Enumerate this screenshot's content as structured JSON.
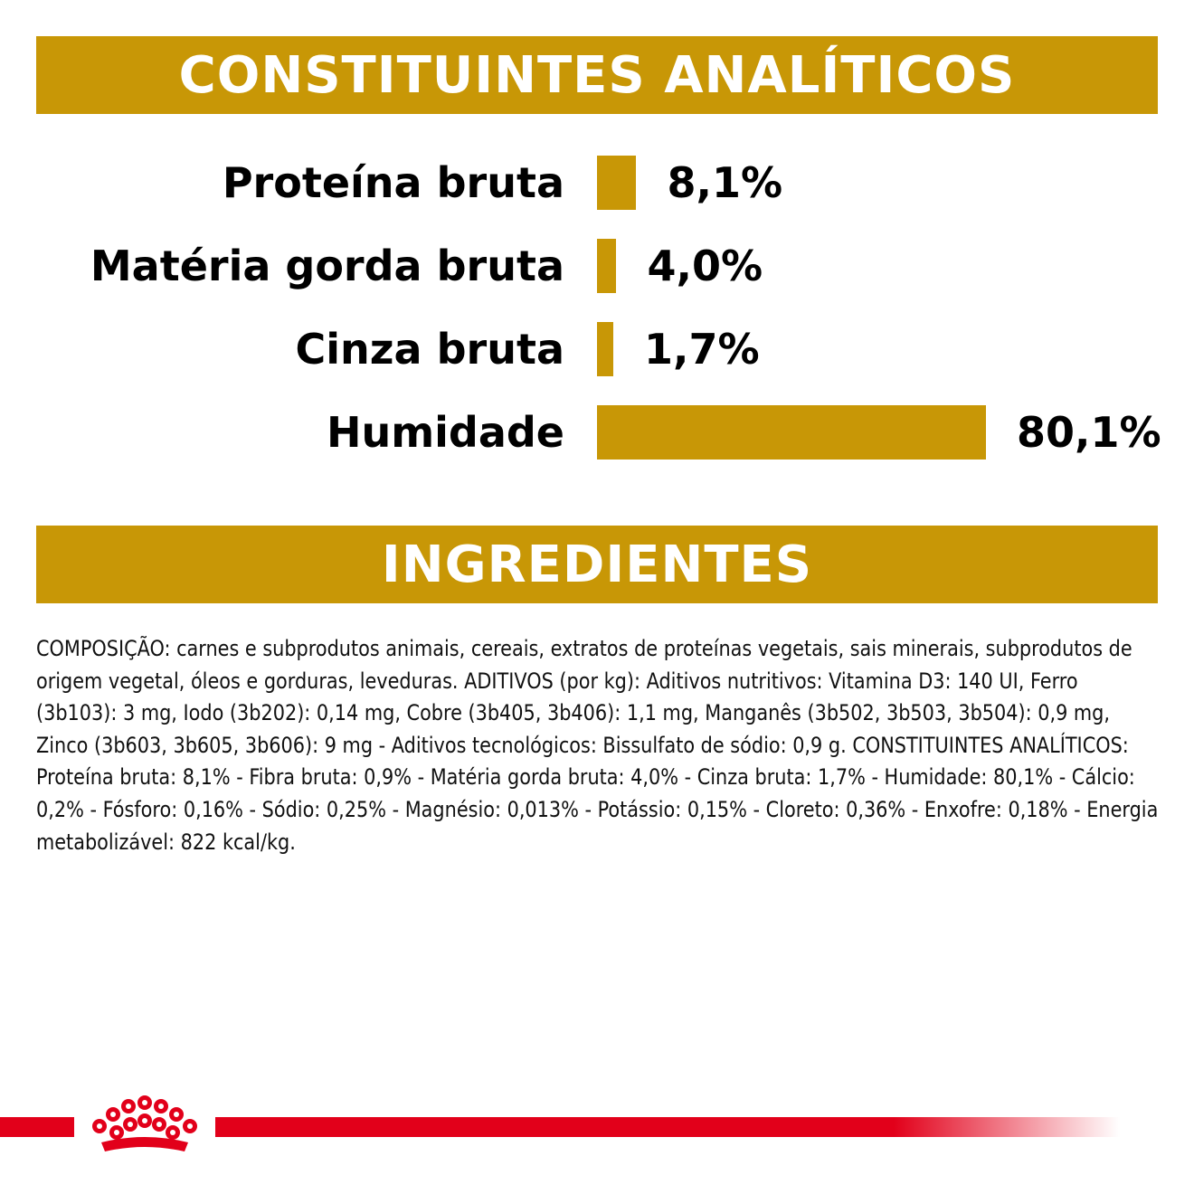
{
  "colors": {
    "gold": "#c89706",
    "red": "#e2001a",
    "text": "#000000"
  },
  "sections": {
    "analytic_title": "CONSTITUINTES ANALÍTICOS",
    "ingredients_title": "INGREDIENTES"
  },
  "chart_data": {
    "type": "bar",
    "orientation": "horizontal",
    "categories": [
      "Proteína bruta",
      "Matéria gorda bruta",
      "Cinza bruta",
      "Humidade"
    ],
    "values": [
      8.1,
      4.0,
      1.7,
      80.1
    ],
    "value_labels": [
      "8,1%",
      "4,0%",
      "1,7%",
      "80,1%"
    ]
  },
  "ingredients": {
    "text": "COMPOSIÇÃO: carnes e subprodutos animais, cereais, extratos de proteínas vegetais, sais minerais, subprodutos de origem vegetal, óleos e gorduras, leveduras. ADITIVOS (por kg): Aditivos nutritivos: Vitamina D3: 140 UI, Ferro (3b103): 3 mg, Iodo (3b202): 0,14 mg, Cobre (3b405, 3b406): 1,1 mg, Manganês (3b502, 3b503, 3b504): 0,9 mg, Zinco (3b603, 3b605, 3b606): 9 mg - Aditivos tecnológicos: Bissulfato de sódio: 0,9 g. CONSTITUINTES ANALÍTICOS: Proteína bruta: 8,1% - Fibra bruta: 0,9% - Matéria gorda bruta: 4,0% - Cinza bruta: 1,7% - Humidade: 80,1% - Cálcio: 0,2% - Fósforo: 0,16% - Sódio: 0,25% - Magnésio: 0,013% - Potássio: 0,15% - Cloreto: 0,36% - Enxofre: 0,18% - Energia metabolizável: 822 kcal/kg."
  },
  "footer": {
    "logo_icon": "royal-canin-crown-icon"
  }
}
